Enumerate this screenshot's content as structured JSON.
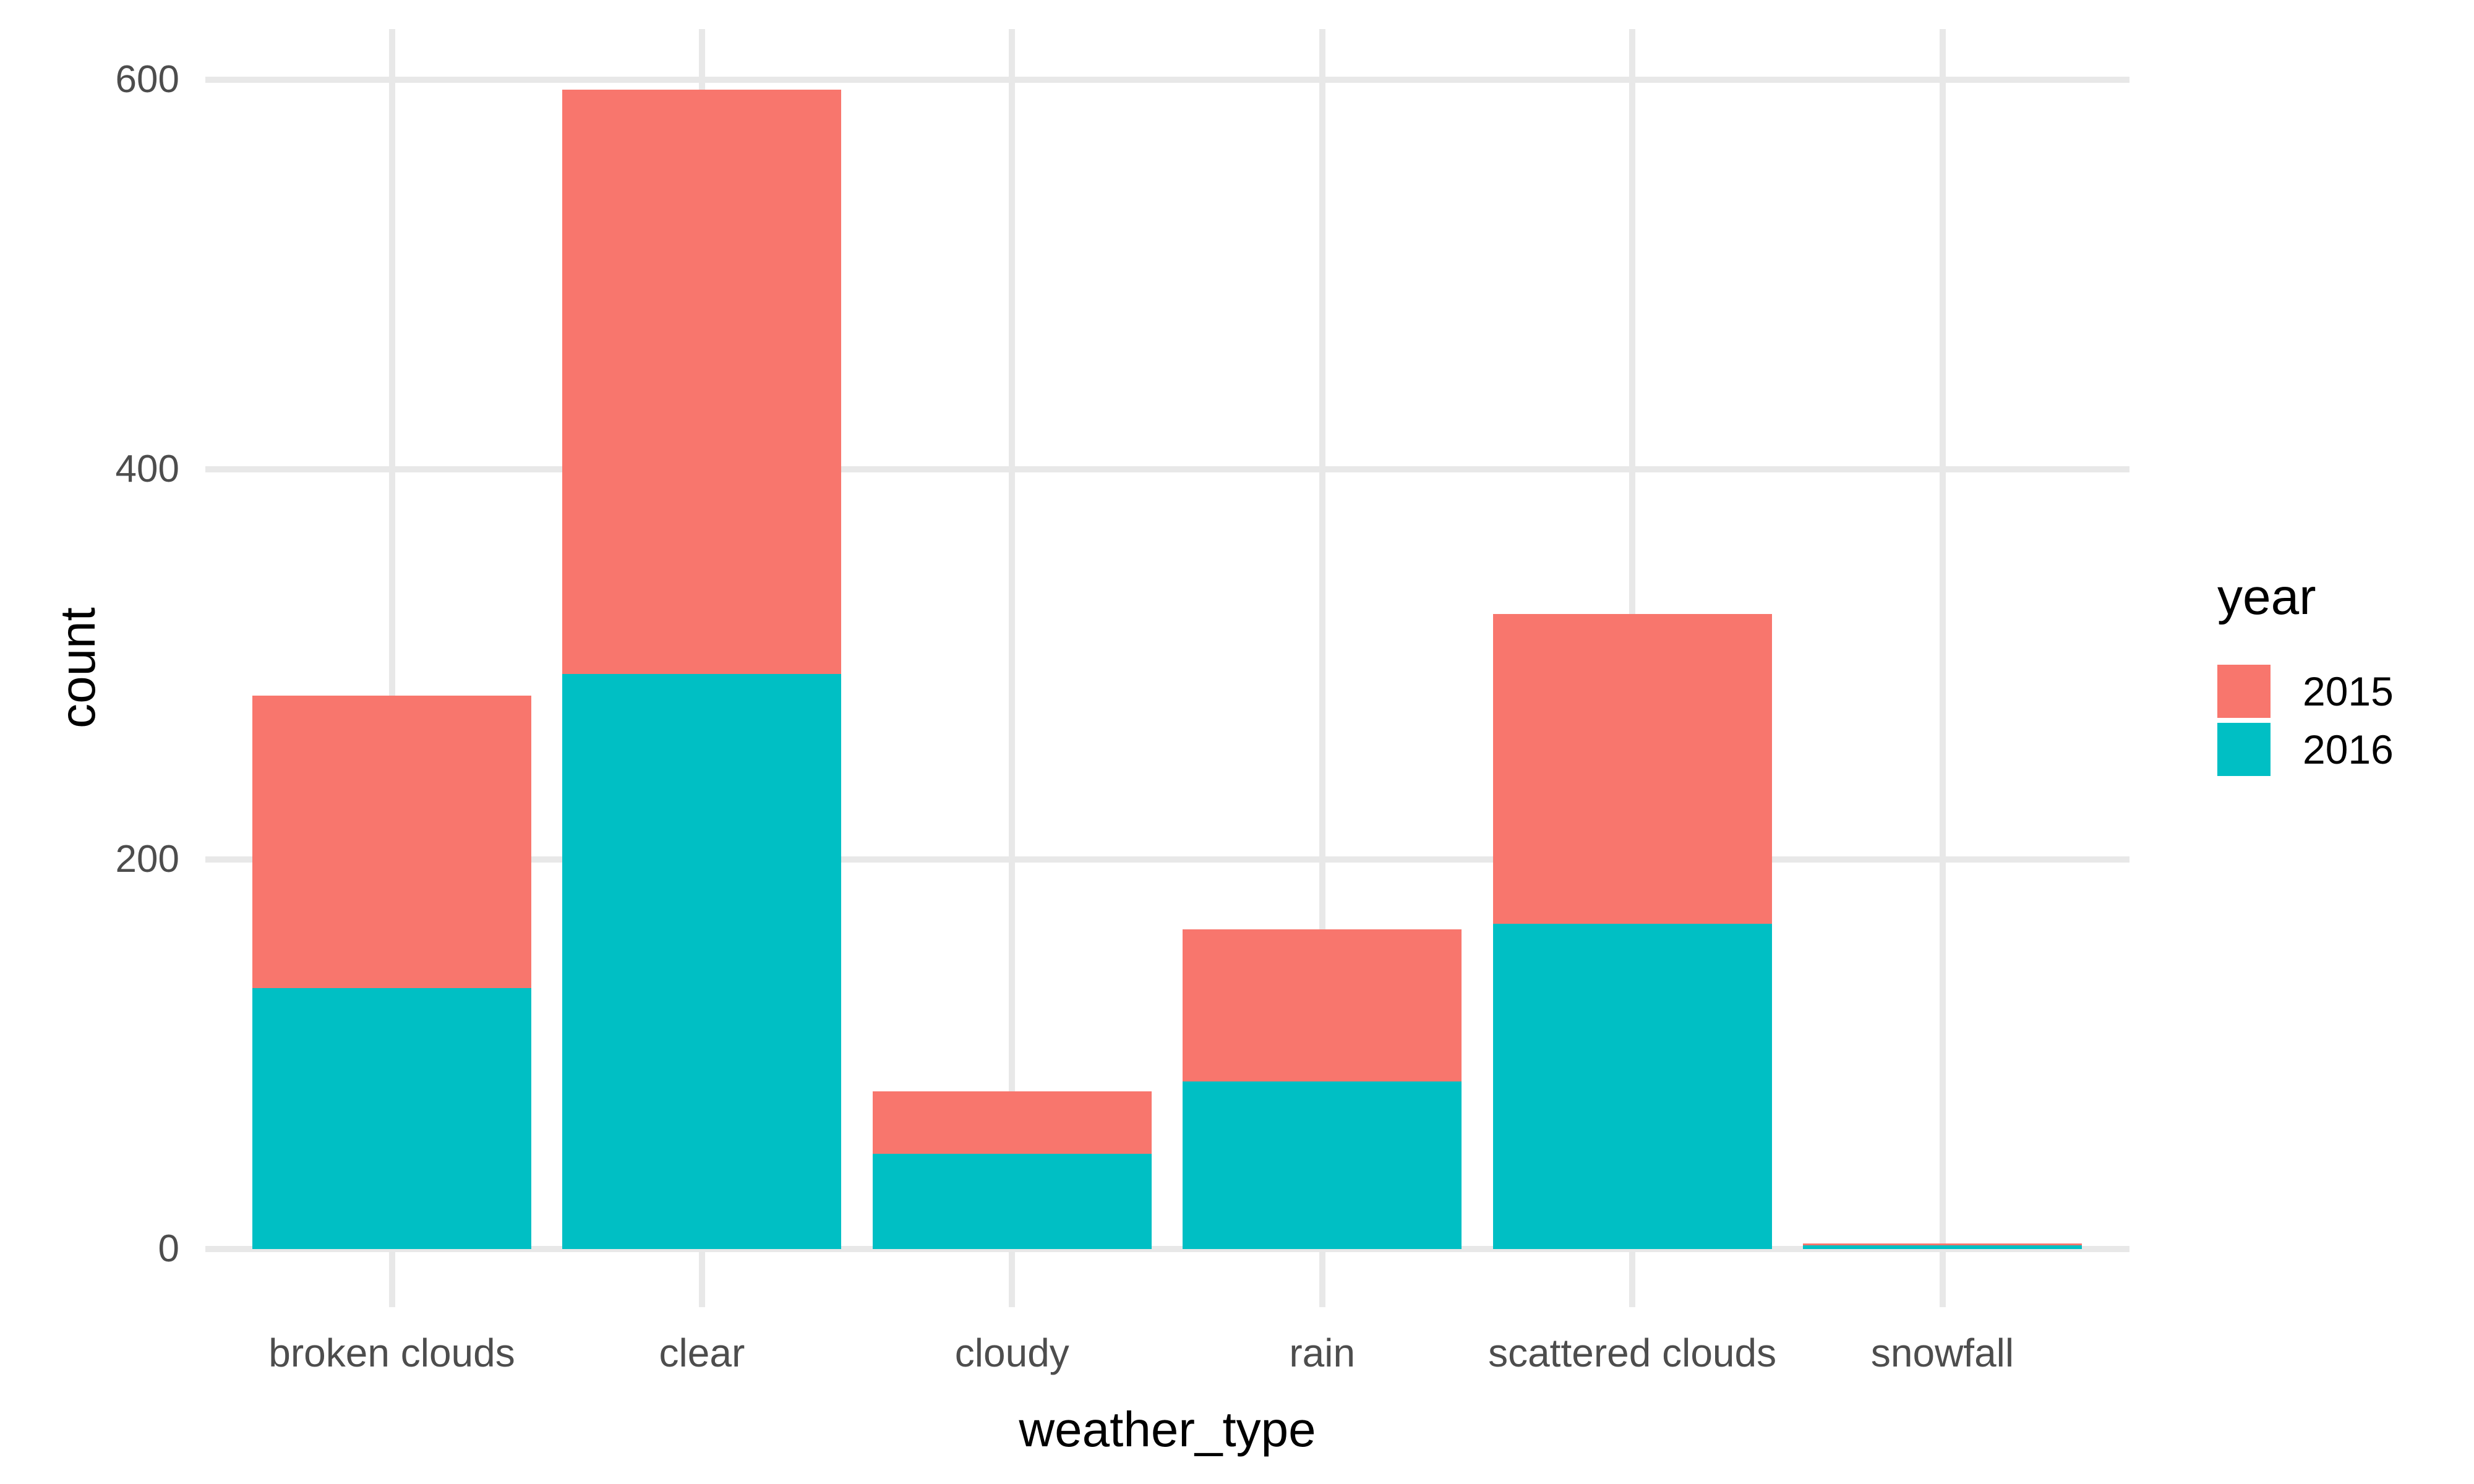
{
  "chart_data": {
    "type": "bar",
    "stacked": true,
    "title": "",
    "xlabel": "weather_type",
    "ylabel": "count",
    "categories": [
      "broken clouds",
      "clear",
      "cloudy",
      "rain",
      "scattered clouds",
      "snowfall"
    ],
    "series": [
      {
        "name": "2015",
        "color": "#F8766D",
        "values": [
          150,
          300,
          32,
          78,
          159,
          1
        ]
      },
      {
        "name": "2016",
        "color": "#00BFC4",
        "values": [
          134,
          295,
          49,
          86,
          167,
          2
        ]
      }
    ],
    "stack_order_top_to_bottom": [
      "2015",
      "2016"
    ],
    "y_ticks": [
      0,
      200,
      400,
      600
    ],
    "ylim": [
      0,
      620
    ],
    "grid": true,
    "gridline_color": "#e8e8e8",
    "background_color": "#ffffff",
    "tick_label_color": "#4d4d4d",
    "axis_title_color": "#000000",
    "legend": {
      "title": "year",
      "position": "right",
      "entries": [
        {
          "label": "2015",
          "color": "#F8766D"
        },
        {
          "label": "2016",
          "color": "#00BFC4"
        }
      ]
    }
  }
}
